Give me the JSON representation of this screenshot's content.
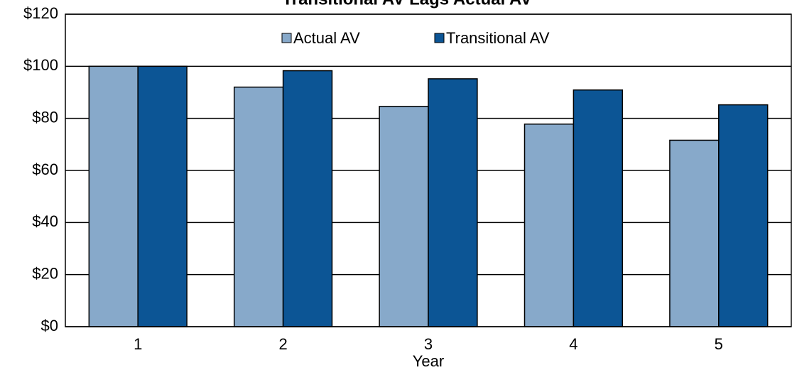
{
  "chart_data": {
    "type": "bar",
    "title": "Transitional AV Lags Actual AV",
    "x_label": "Year",
    "categories": [
      "1",
      "2",
      "3",
      "4",
      "5"
    ],
    "series": [
      {
        "name": "Actual AV",
        "color": "#87a9ca",
        "values": [
          100,
          92,
          84.6,
          77.8,
          71.6
        ]
      },
      {
        "name": "Transitional AV",
        "color": "#0c5595",
        "values": [
          100,
          98.3,
          95.2,
          90.9,
          85.2
        ]
      }
    ],
    "ylim": [
      0,
      120
    ],
    "yticks": [
      {
        "value": 0,
        "label": "$0"
      },
      {
        "value": 20,
        "label": "$20"
      },
      {
        "value": 40,
        "label": "$40"
      },
      {
        "value": 60,
        "label": "$60"
      },
      {
        "value": 80,
        "label": "$80"
      },
      {
        "value": 100,
        "label": "$100"
      },
      {
        "value": 120,
        "label": "$120"
      }
    ],
    "grid": true,
    "legend": "top"
  }
}
